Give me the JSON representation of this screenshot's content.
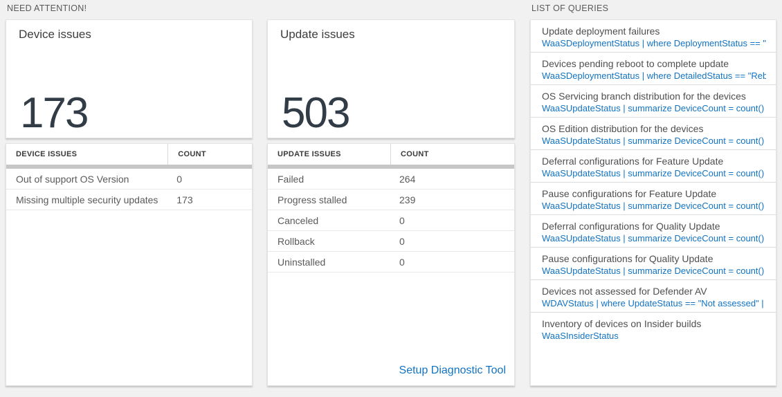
{
  "colors": {
    "page_background": "#f1f1f1",
    "card_background": "#ffffff",
    "accent_blue": "#1273c3",
    "big_number_color": "#313c47",
    "gray_bar": "#c6c6c6"
  },
  "sections": {
    "need_attention_label": "NEED ATTENTION!",
    "list_of_queries_label": "LIST OF QUERIES"
  },
  "device_card": {
    "title": "Device issues",
    "count": "173"
  },
  "device_table": {
    "headers": [
      "DEVICE ISSUES",
      "COUNT"
    ],
    "rows": [
      {
        "label": "Out of support OS Version",
        "count": "0"
      },
      {
        "label": "Missing multiple security updates",
        "count": "173"
      }
    ]
  },
  "update_card": {
    "title": "Update issues",
    "count": "503"
  },
  "update_table": {
    "headers": [
      "UPDATE ISSUES",
      "COUNT"
    ],
    "rows": [
      {
        "label": "Failed",
        "count": "264"
      },
      {
        "label": "Progress stalled",
        "count": "239"
      },
      {
        "label": "Canceled",
        "count": "0"
      },
      {
        "label": "Rollback",
        "count": "0"
      },
      {
        "label": "Uninstalled",
        "count": "0"
      }
    ],
    "footer_link": "Setup Diagnostic Tool"
  },
  "queries": {
    "items": [
      {
        "title": "Update deployment failures",
        "query": "WaaSDeploymentStatus | where DeploymentStatus == \"Failed\" |..."
      },
      {
        "title": "Devices pending reboot to complete update",
        "query": "WaaSDeploymentStatus | where DetailedStatus == \"Reboot pend..."
      },
      {
        "title": "OS Servicing branch distribution for the devices",
        "query": "WaaSUpdateStatus | summarize DeviceCount = count() by OSSer..."
      },
      {
        "title": "OS Edition distribution for the devices",
        "query": "WaaSUpdateStatus | summarize DeviceCount = count() by OSEdit..."
      },
      {
        "title": "Deferral configurations for Feature Update",
        "query": "WaaSUpdateStatus | summarize DeviceCount = count() by Featur..."
      },
      {
        "title": "Pause configurations for Feature Update",
        "query": "WaaSUpdateStatus | summarize DeviceCount = count() by Featur..."
      },
      {
        "title": "Deferral configurations for Quality Update",
        "query": "WaaSUpdateStatus | summarize DeviceCount = count() by Qualit..."
      },
      {
        "title": "Pause configurations for Quality Update",
        "query": "WaaSUpdateStatus | summarize DeviceCount = count() by Qualit..."
      },
      {
        "title": "Devices not assessed for Defender AV",
        "query": "WDAVStatus | where UpdateStatus == \"Not assessed\" | render ta..."
      },
      {
        "title": "Inventory of devices on Insider builds",
        "query": "WaaSInsiderStatus"
      }
    ]
  }
}
